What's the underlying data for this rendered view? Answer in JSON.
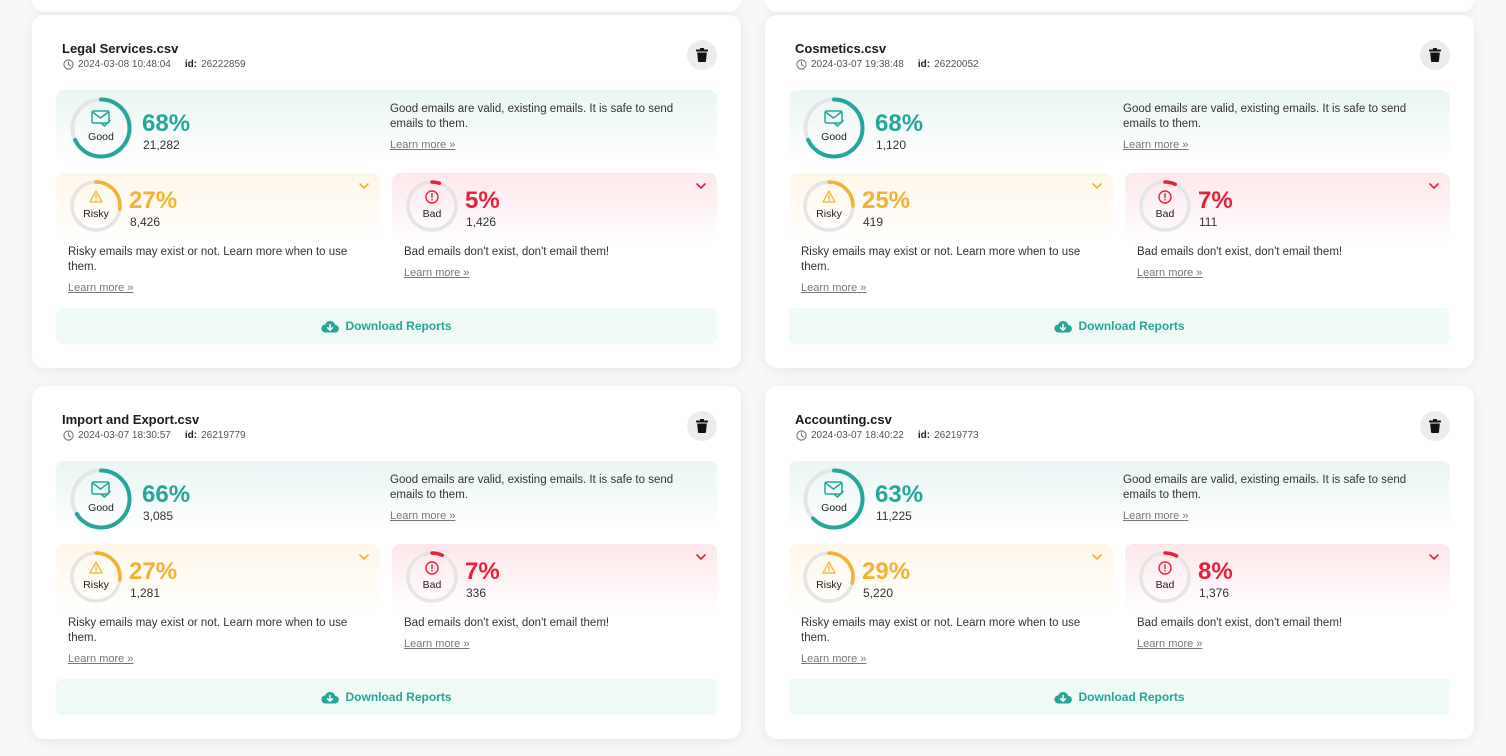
{
  "colors": {
    "good": "#26a69a",
    "risky": "#f2b233",
    "bad": "#e8213a",
    "track": "#e5e5e5"
  },
  "labels": {
    "good": "Good",
    "risky": "Risky",
    "bad": "Bad",
    "good_desc": "Good emails are valid, existing emails. It is safe to send emails to them.",
    "risky_desc": "Risky emails may exist or not. Learn more when to use them.",
    "bad_desc": "Bad emails don't exist, don't email them!",
    "learn_more": "Learn more »",
    "download": "Download Reports",
    "id_label": "id:"
  },
  "cards": [
    {
      "title": "Legal Services.csv",
      "date": "2024-03-08 10:48:04",
      "id": "26222859",
      "good": {
        "pct": "68%",
        "value": 68,
        "count": "21,282"
      },
      "risky": {
        "pct": "27%",
        "value": 27,
        "count": "8,426"
      },
      "bad": {
        "pct": "5%",
        "value": 5,
        "count": "1,426"
      }
    },
    {
      "title": "Cosmetics.csv",
      "date": "2024-03-07 19:38:48",
      "id": "26220052",
      "good": {
        "pct": "68%",
        "value": 68,
        "count": "1,120"
      },
      "risky": {
        "pct": "25%",
        "value": 25,
        "count": "419"
      },
      "bad": {
        "pct": "7%",
        "value": 7,
        "count": "111"
      }
    },
    {
      "title": "Import and Export.csv",
      "date": "2024-03-07 18:30:57",
      "id": "26219779",
      "good": {
        "pct": "66%",
        "value": 66,
        "count": "3,085"
      },
      "risky": {
        "pct": "27%",
        "value": 27,
        "count": "1,281"
      },
      "bad": {
        "pct": "7%",
        "value": 7,
        "count": "336"
      }
    },
    {
      "title": "Accounting.csv",
      "date": "2024-03-07 18:40:22",
      "id": "26219773",
      "good": {
        "pct": "63%",
        "value": 63,
        "count": "11,225"
      },
      "risky": {
        "pct": "29%",
        "value": 29,
        "count": "5,220"
      },
      "bad": {
        "pct": "8%",
        "value": 8,
        "count": "1,376"
      }
    }
  ]
}
